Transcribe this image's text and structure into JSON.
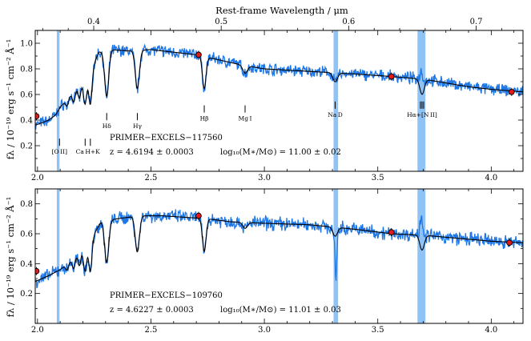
{
  "figure": {
    "top_axis_label": "Rest-frame Wavelength / μm",
    "top_ticks": [
      {
        "value": 0.4,
        "label": "0.4"
      },
      {
        "value": 0.5,
        "label": "0.5"
      },
      {
        "value": 0.6,
        "label": "0.6"
      },
      {
        "value": 0.7,
        "label": "0.7"
      }
    ],
    "colors": {
      "observed": "#1f77e6",
      "model": "#000000",
      "photometry": "#e31a1c",
      "mask": "#8fc3f6"
    }
  },
  "chart_data": [
    {
      "type": "line",
      "panel": "top",
      "object_name": "PRIMER−EXCELS−117560",
      "redshift_text": "z = 4.6194 ± 0.0003",
      "mass_text": "log₁₀(M∗/M⊙) = 11.00 ± 0.02",
      "ylabel": "fλ / 10⁻¹⁹ erg s⁻¹ cm⁻² Å⁻¹",
      "xlim": [
        1.99,
        4.14
      ],
      "ylim": [
        0.0,
        1.1
      ],
      "x_ticks": [
        {
          "value": 2.0,
          "label": "2.0"
        },
        {
          "value": 2.5,
          "label": "2.5"
        },
        {
          "value": 3.0,
          "label": "3.0"
        },
        {
          "value": 3.5,
          "label": "3.5"
        },
        {
          "value": 4.0,
          "label": "4.0"
        }
      ],
      "y_ticks": [
        {
          "value": 0.2,
          "label": "0.2"
        },
        {
          "value": 0.4,
          "label": "0.4"
        },
        {
          "value": 0.6,
          "label": "0.6"
        },
        {
          "value": 0.8,
          "label": "0.8"
        },
        {
          "value": 1.0,
          "label": "1.0"
        }
      ],
      "masked_regions": [
        [
          2.085,
          2.097
        ],
        [
          3.305,
          3.325
        ],
        [
          3.675,
          3.71
        ]
      ],
      "continuum": [
        [
          1.99,
          0.36
        ],
        [
          2.02,
          0.38
        ],
        [
          2.05,
          0.4
        ],
        [
          2.08,
          0.44
        ],
        [
          2.1,
          0.5
        ],
        [
          2.15,
          0.6
        ],
        [
          2.2,
          0.7
        ],
        [
          2.24,
          0.8
        ],
        [
          2.27,
          0.93
        ],
        [
          2.32,
          0.95
        ],
        [
          2.4,
          0.94
        ],
        [
          2.5,
          0.95
        ],
        [
          2.6,
          0.93
        ],
        [
          2.7,
          0.91
        ],
        [
          2.8,
          0.87
        ],
        [
          2.9,
          0.83
        ],
        [
          3.0,
          0.8
        ],
        [
          3.2,
          0.78
        ],
        [
          3.4,
          0.76
        ],
        [
          3.56,
          0.74
        ],
        [
          3.7,
          0.72
        ],
        [
          3.8,
          0.69
        ],
        [
          3.9,
          0.66
        ],
        [
          4.0,
          0.64
        ],
        [
          4.14,
          0.62
        ]
      ],
      "absorption_lines": [
        [
          2.13,
          0.05,
          0.006
        ],
        [
          2.16,
          0.08,
          0.006
        ],
        [
          2.185,
          0.1,
          0.006
        ],
        [
          2.21,
          0.2,
          0.007
        ],
        [
          2.233,
          0.26,
          0.007
        ],
        [
          2.305,
          0.36,
          0.009
        ],
        [
          2.44,
          0.3,
          0.009
        ],
        [
          2.735,
          0.25,
          0.008
        ],
        [
          2.915,
          0.06,
          0.01
        ],
        [
          3.312,
          0.07,
          0.01
        ],
        [
          3.695,
          0.12,
          0.01
        ]
      ],
      "emission_lines": [
        [
          3.693,
          0.18,
          0.008
        ]
      ],
      "photometry": [
        {
          "x": 1.995,
          "y": 0.43
        },
        {
          "x": 2.71,
          "y": 0.91
        },
        {
          "x": 3.56,
          "y": 0.74
        },
        {
          "x": 4.09,
          "y": 0.62
        }
      ],
      "annotations": [
        {
          "text": "[O II]",
          "x": 2.097,
          "y": 0.18,
          "ticks": [
            2.097
          ]
        },
        {
          "text": "Ca H+K",
          "x": 2.222,
          "y": 0.18,
          "ticks": [
            2.21,
            2.233
          ]
        },
        {
          "text": "Hδ",
          "x": 2.305,
          "y": 0.38,
          "ticks": [
            2.305
          ]
        },
        {
          "text": "Hγ",
          "x": 2.44,
          "y": 0.38,
          "ticks": [
            2.44
          ]
        },
        {
          "text": "Hβ",
          "x": 2.735,
          "y": 0.44,
          "ticks": [
            2.735
          ]
        },
        {
          "text": "Mg I",
          "x": 2.915,
          "y": 0.44,
          "ticks": [
            2.915
          ]
        },
        {
          "text": "Na D",
          "x": 3.312,
          "y": 0.47,
          "ticks": [
            3.312
          ]
        },
        {
          "text": "Hα+[N II]",
          "x": 3.695,
          "y": 0.47,
          "ticks": [
            3.688,
            3.695,
            3.702
          ]
        }
      ]
    },
    {
      "type": "line",
      "panel": "bottom",
      "object_name": "PRIMER−EXCELS−109760",
      "redshift_text": "z = 4.6227 ± 0.0003",
      "mass_text": "log₁₀(M∗/M⊙) = 11.01 ± 0.03",
      "ylabel": "fλ / 10⁻¹⁹ erg s⁻¹ cm⁻² Å⁻¹",
      "xlim": [
        1.99,
        4.14
      ],
      "ylim": [
        0.0,
        0.9
      ],
      "x_ticks": [
        {
          "value": 2.0,
          "label": "2.0"
        },
        {
          "value": 2.5,
          "label": "2.5"
        },
        {
          "value": 3.0,
          "label": "3.0"
        },
        {
          "value": 3.5,
          "label": "3.5"
        },
        {
          "value": 4.0,
          "label": "4.0"
        }
      ],
      "y_ticks": [
        {
          "value": 0.2,
          "label": "0.2"
        },
        {
          "value": 0.4,
          "label": "0.4"
        },
        {
          "value": 0.6,
          "label": "0.6"
        },
        {
          "value": 0.8,
          "label": "0.8"
        }
      ],
      "masked_regions": [
        [
          2.085,
          2.097
        ],
        [
          3.305,
          3.325
        ],
        [
          3.675,
          3.71
        ]
      ],
      "continuum": [
        [
          1.99,
          0.28
        ],
        [
          2.02,
          0.3
        ],
        [
          2.05,
          0.32
        ],
        [
          2.1,
          0.36
        ],
        [
          2.15,
          0.42
        ],
        [
          2.2,
          0.5
        ],
        [
          2.25,
          0.6
        ],
        [
          2.28,
          0.68
        ],
        [
          2.35,
          0.7
        ],
        [
          2.45,
          0.72
        ],
        [
          2.55,
          0.72
        ],
        [
          2.65,
          0.71
        ],
        [
          2.75,
          0.7
        ],
        [
          2.85,
          0.68
        ],
        [
          3.0,
          0.67
        ],
        [
          3.2,
          0.66
        ],
        [
          3.4,
          0.63
        ],
        [
          3.56,
          0.6
        ],
        [
          3.7,
          0.59
        ],
        [
          3.85,
          0.57
        ],
        [
          4.0,
          0.55
        ],
        [
          4.14,
          0.54
        ]
      ],
      "absorption_lines": [
        [
          2.13,
          0.04,
          0.006
        ],
        [
          2.16,
          0.07,
          0.006
        ],
        [
          2.185,
          0.09,
          0.006
        ],
        [
          2.21,
          0.17,
          0.007
        ],
        [
          2.233,
          0.22,
          0.007
        ],
        [
          2.305,
          0.28,
          0.009
        ],
        [
          2.44,
          0.24,
          0.009
        ],
        [
          2.735,
          0.22,
          0.008
        ],
        [
          2.915,
          0.04,
          0.01
        ],
        [
          3.312,
          0.06,
          0.01
        ],
        [
          3.695,
          0.1,
          0.01
        ]
      ],
      "emission_lines": [
        [
          3.693,
          0.22,
          0.008
        ]
      ],
      "observed_features": [
        [
          3.315,
          -0.28,
          0.004
        ]
      ],
      "photometry": [
        {
          "x": 1.995,
          "y": 0.35
        },
        {
          "x": 2.71,
          "y": 0.72
        },
        {
          "x": 3.56,
          "y": 0.61
        },
        {
          "x": 4.08,
          "y": 0.54
        }
      ]
    }
  ]
}
